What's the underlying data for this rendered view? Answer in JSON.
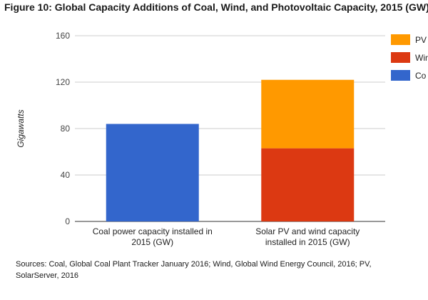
{
  "chart_data": {
    "type": "bar",
    "stacked": true,
    "title": "Figure 10: Global Capacity Additions of Coal, Wind, and Photovoltaic Capacity, 2015 (GW)",
    "ylabel": "Gigawatts",
    "xlabel": "",
    "ylim": [
      0,
      160
    ],
    "yticks": [
      0,
      40,
      80,
      120,
      160
    ],
    "categories": [
      [
        "Coal power capacity installed in",
        "2015 (GW)"
      ],
      [
        "Solar PV and wind capacity",
        "installed in 2015 (GW)"
      ]
    ],
    "series": [
      {
        "name": "Coal",
        "values": [
          84,
          0
        ],
        "color": "#3366CC"
      },
      {
        "name": "Wind",
        "values": [
          0,
          63
        ],
        "color": "#DC3912"
      },
      {
        "name": "PV",
        "values": [
          0,
          59
        ],
        "color": "#FF9900"
      }
    ],
    "legend": {
      "position": "right",
      "entries": [
        {
          "label": "PV",
          "color": "#FF9900"
        },
        {
          "label": "Win",
          "color": "#DC3912"
        },
        {
          "label": "Co",
          "color": "#3366CC"
        }
      ]
    },
    "grid": true,
    "source": "Sources: Coal, Global Coal Plant Tracker January 2016; Wind, Global Wind Energy Council, 2016; PV, SolarServer, 2016"
  }
}
